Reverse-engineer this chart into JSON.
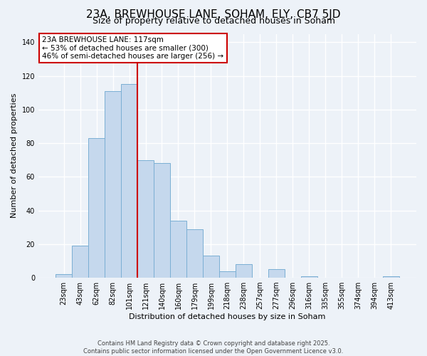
{
  "title": "23A, BREWHOUSE LANE, SOHAM, ELY, CB7 5JD",
  "subtitle": "Size of property relative to detached houses in Soham",
  "xlabel": "Distribution of detached houses by size in Soham",
  "ylabel": "Number of detached properties",
  "bar_labels": [
    "23sqm",
    "43sqm",
    "62sqm",
    "82sqm",
    "101sqm",
    "121sqm",
    "140sqm",
    "160sqm",
    "179sqm",
    "199sqm",
    "218sqm",
    "238sqm",
    "257sqm",
    "277sqm",
    "296sqm",
    "316sqm",
    "335sqm",
    "355sqm",
    "374sqm",
    "394sqm",
    "413sqm"
  ],
  "bar_values": [
    2,
    19,
    83,
    111,
    115,
    70,
    68,
    34,
    29,
    13,
    4,
    8,
    0,
    5,
    0,
    1,
    0,
    0,
    0,
    0,
    1
  ],
  "bar_color": "#c5d8ed",
  "bar_edge_color": "#7bafd4",
  "ylim": [
    0,
    145
  ],
  "yticks": [
    0,
    20,
    40,
    60,
    80,
    100,
    120,
    140
  ],
  "vline_x": 4.5,
  "vline_color": "#cc0000",
  "annotation_line1": "23A BREWHOUSE LANE: 117sqm",
  "annotation_line2": "← 53% of detached houses are smaller (300)",
  "annotation_line3": "46% of semi-detached houses are larger (256) →",
  "bg_color": "#edf2f8",
  "footer_line1": "Contains HM Land Registry data © Crown copyright and database right 2025.",
  "footer_line2": "Contains public sector information licensed under the Open Government Licence v3.0.",
  "title_fontsize": 11,
  "subtitle_fontsize": 9,
  "footer_fontsize": 6,
  "ylabel_fontsize": 8,
  "xlabel_fontsize": 8
}
